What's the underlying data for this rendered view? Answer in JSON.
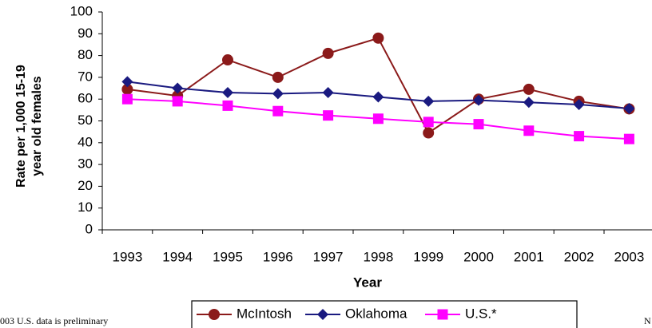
{
  "chart_data": {
    "type": "line",
    "categories": [
      "1993",
      "1994",
      "1995",
      "1996",
      "1997",
      "1998",
      "1999",
      "2000",
      "2001",
      "2002",
      "2003"
    ],
    "series": [
      {
        "name": "McIntosh",
        "color": "#8b1a1a",
        "marker": "circle",
        "values": [
          64.5,
          61.5,
          78,
          70,
          81,
          88,
          44.5,
          60,
          64.5,
          59,
          55.5
        ]
      },
      {
        "name": "Oklahoma",
        "color": "#1a1a80",
        "marker": "diamond",
        "values": [
          68,
          65,
          63,
          62.5,
          63,
          61,
          59,
          59.5,
          58.5,
          57.5,
          55.7
        ]
      },
      {
        "name": "U.S.*",
        "color": "#ff00ff",
        "marker": "square",
        "values": [
          60,
          59,
          57,
          54.5,
          52.5,
          51,
          49.5,
          48.5,
          45.5,
          43,
          41.7
        ]
      }
    ],
    "ylim": [
      0,
      100
    ],
    "yticks": [
      0,
      10,
      20,
      30,
      40,
      50,
      60,
      70,
      80,
      90,
      100
    ],
    "y_label_lines": [
      "Rate per 1,000 15-19",
      "year old females"
    ],
    "x_label": "Year",
    "footnote": "003 U.S. data is preliminary",
    "right_note": "N"
  }
}
